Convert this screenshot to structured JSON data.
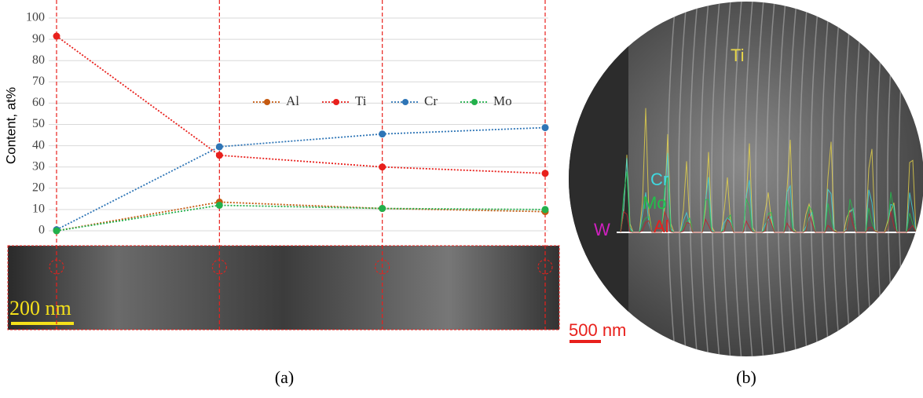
{
  "chart_data": {
    "type": "line",
    "ylabel": "Content, at%",
    "categories": [
      null,
      null,
      null,
      null
    ],
    "series": [
      {
        "name": "Al",
        "color": "#c55a11",
        "values": [
          0,
          13.5,
          10.5,
          9
        ]
      },
      {
        "name": "Ti",
        "color": "#e8201c",
        "values": [
          91.5,
          35.5,
          30,
          27
        ]
      },
      {
        "name": "Cr",
        "color": "#2e75b6",
        "values": [
          0.5,
          39.5,
          45.5,
          48.5
        ]
      },
      {
        "name": "Mo",
        "color": "#22b04b",
        "values": [
          0,
          12,
          10.5,
          10
        ]
      }
    ],
    "ylim": [
      0,
      100
    ],
    "yticks": [
      0,
      10,
      20,
      30,
      40,
      50,
      60,
      70,
      80,
      90,
      100
    ],
    "grid": true,
    "legend": "right"
  },
  "annotations": {
    "panel_a": "(a)",
    "panel_b": "(b)",
    "scale_a": "200 nm",
    "scale_b": "500 nm",
    "elements": [
      "Ti",
      "Cr",
      "Mo",
      "Al",
      "W"
    ]
  }
}
